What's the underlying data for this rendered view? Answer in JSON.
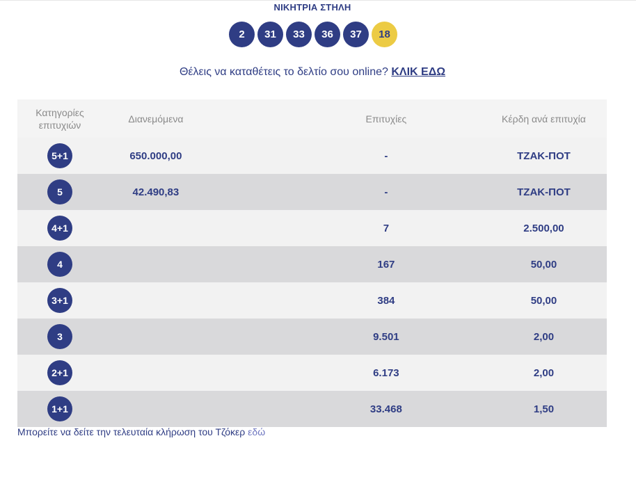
{
  "header": {
    "title": "ΝΙΚΗΤΡΙΑ ΣΤΗΛΗ",
    "numbers": [
      "2",
      "31",
      "33",
      "36",
      "37"
    ],
    "joker": "18"
  },
  "online": {
    "question": "Θέλεις να καταθέτεις το δελτίο σου online?",
    "link_label": "ΚΛΙΚ ΕΔΩ"
  },
  "table": {
    "headers": {
      "category": "Κατηγορίες επιτυχιών",
      "distributed": "Διανεμόμενα",
      "winners": "Επιτυχίες",
      "prize": "Κέρδη ανά επιτυχία"
    },
    "rows": [
      {
        "category": "5+1",
        "distributed": "650.000,00",
        "winners": "-",
        "prize": "ΤΖΑΚ-ΠΟΤ"
      },
      {
        "category": "5",
        "distributed": "42.490,83",
        "winners": "-",
        "prize": "ΤΖΑΚ-ΠΟΤ"
      },
      {
        "category": "4+1",
        "distributed": "",
        "winners": "7",
        "prize": "2.500,00"
      },
      {
        "category": "4",
        "distributed": "",
        "winners": "167",
        "prize": "50,00"
      },
      {
        "category": "3+1",
        "distributed": "",
        "winners": "384",
        "prize": "50,00"
      },
      {
        "category": "3",
        "distributed": "",
        "winners": "9.501",
        "prize": "2,00"
      },
      {
        "category": "2+1",
        "distributed": "",
        "winners": "6.173",
        "prize": "2,00"
      },
      {
        "category": "1+1",
        "distributed": "",
        "winners": "33.468",
        "prize": "1,50"
      }
    ]
  },
  "footer": {
    "text": "Μπορείτε να δείτε την τελευταία κλήρωση του Τζόκερ",
    "link_label": "εδώ"
  },
  "colors": {
    "primary": "#2f3d84",
    "joker": "#eccb44",
    "row_light": "#f2f2f2",
    "row_dark": "#d9d9db"
  }
}
